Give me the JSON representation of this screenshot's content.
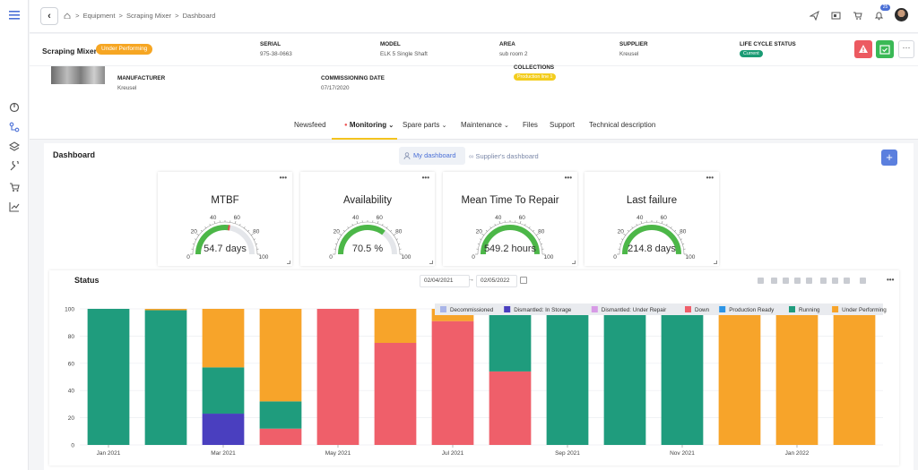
{
  "breadcrumb": {
    "items": [
      "Equipment",
      "Scraping Mixer",
      "Dashboard"
    ],
    "separator": ">"
  },
  "topbar": {
    "notification_count": "25"
  },
  "equipment": {
    "name": "Scraping Mixer",
    "status_badge": "Under Performing",
    "serial_label": "SERIAL",
    "serial": "975-38-0663",
    "model_label": "MODEL",
    "model": "ELK 5 Single Shaft",
    "area_label": "AREA",
    "area": "sub room 2",
    "supplier_label": "SUPPLIER",
    "supplier": "Kreusel",
    "lifecycle_label": "LIFE CYCLE STATUS",
    "lifecycle": "Current",
    "manufacturer_label": "MANUFACTURER",
    "manufacturer": "Kreusel",
    "commissioning_label": "COMMISSIONING DATE",
    "commissioning": "07/17/2020",
    "collections_label": "COLLECTIONS",
    "collection": "Production line 1"
  },
  "tabs": [
    {
      "label": "Newsfeed"
    },
    {
      "label": "Monitoring",
      "active": true,
      "dropdown": true
    },
    {
      "label": "Spare parts",
      "dropdown": true
    },
    {
      "label": "Maintenance",
      "dropdown": true
    },
    {
      "label": "Files"
    },
    {
      "label": "Support"
    },
    {
      "label": "Technical description"
    }
  ],
  "dashboard": {
    "title": "Dashboard",
    "my_dashboard": "My dashboard",
    "supplier_dashboard": "Supplier's dashboard",
    "add_label": "+"
  },
  "gauges": [
    {
      "title": "MTBF",
      "value": "54.7 days",
      "fraction": 0.547,
      "needle": true,
      "ticks": [
        "0",
        "20",
        "40",
        "60",
        "80",
        "100"
      ]
    },
    {
      "title": "Availability",
      "value": "70.5 %",
      "fraction": 0.705,
      "needle": false,
      "ticks": [
        "0",
        "20",
        "40",
        "60",
        "80",
        "100"
      ]
    },
    {
      "title": "Mean Time To Repair",
      "value": "549.2 hours",
      "fraction": 1.0,
      "needle": false,
      "ticks": [
        "0",
        "20",
        "40",
        "60",
        "80",
        "100"
      ]
    },
    {
      "title": "Last failure",
      "value": "214.8 days",
      "fraction": 1.0,
      "needle": false,
      "ticks": [
        "0",
        "20",
        "40",
        "60",
        "80",
        "100"
      ]
    }
  ],
  "status_panel": {
    "title": "Status",
    "date_from": "02/04/2021",
    "date_to": "02/05/2022",
    "date_separator": "→"
  },
  "colors": {
    "Decommissioned": "#a9b5e8",
    "Dismantled: In Storage": "#4a3fbf",
    "Dismantled: Under Repair": "#d79ae6",
    "Down": "#ef5f6a",
    "Production Ready": "#2c95e6",
    "Running": "#1f9c7d",
    "Under Performing": "#f7a42a"
  },
  "chart_data": {
    "type": "bar",
    "stacked": true,
    "categories": [
      "2021-01",
      "2021-02",
      "2021-03",
      "2021-04",
      "2021-05",
      "2021-06",
      "2021-07",
      "2021-08",
      "2021-09",
      "2021-10",
      "2021-11",
      "2021-12",
      "2022-01",
      "2022-02"
    ],
    "x_tick_labels": [
      "Jan 2021",
      "Mar 2021",
      "May 2021",
      "Jul 2021",
      "Sep 2021",
      "Nov 2021",
      "Jan 2022"
    ],
    "y_ticks": [
      0,
      20,
      40,
      60,
      80,
      100
    ],
    "ylim": [
      0,
      100
    ],
    "legend_position": "top-right",
    "series": [
      {
        "name": "Decommissioned",
        "values": [
          0,
          0,
          0,
          0,
          0,
          0,
          0,
          0,
          0,
          0,
          0,
          0,
          0,
          0
        ]
      },
      {
        "name": "Dismantled: In Storage",
        "values": [
          0,
          0,
          23,
          0,
          0,
          0,
          0,
          0,
          0,
          0,
          0,
          0,
          0,
          0
        ]
      },
      {
        "name": "Dismantled: Under Repair",
        "values": [
          0,
          0,
          0,
          0,
          0,
          0,
          0,
          0,
          0,
          0,
          0,
          0,
          0,
          0
        ]
      },
      {
        "name": "Down",
        "values": [
          0,
          0,
          0,
          12,
          100,
          75,
          91,
          54,
          0,
          0,
          0,
          0,
          0,
          0
        ]
      },
      {
        "name": "Production Ready",
        "values": [
          0,
          0,
          0,
          0,
          0,
          0,
          0,
          0,
          0,
          0,
          0,
          0,
          0,
          0
        ]
      },
      {
        "name": "Running",
        "values": [
          100,
          99,
          34,
          20,
          0,
          0,
          0,
          46,
          100,
          100,
          100,
          0,
          0,
          0
        ]
      },
      {
        "name": "Under Performing",
        "values": [
          0,
          1,
          43,
          68,
          0,
          25,
          9,
          0,
          0,
          0,
          0,
          100,
          100,
          100
        ]
      }
    ]
  }
}
